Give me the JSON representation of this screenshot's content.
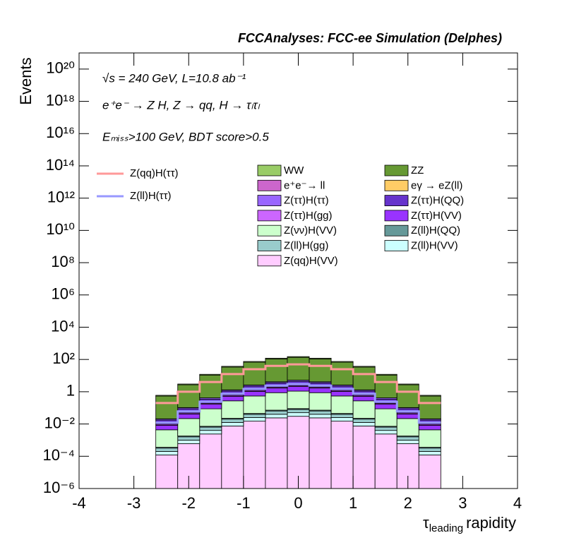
{
  "chart_data": {
    "type": "stacked_histogram",
    "title": "FCCAnalyses: FCC-ee Simulation (Delphes)",
    "annotations": [
      "√s = 240 GeV, L=10.8 ab⁻¹",
      "e⁺e⁻ → Z H, Z → qq, H → τₗτₗ",
      "Eₘᵢₛₛ>100 GeV, BDT score>0.5"
    ],
    "xlabel": {
      "symbol": "τ",
      "subscript": "leading",
      "text": "rapidity"
    },
    "ylabel": "Events",
    "log_y": true,
    "xlim": [
      -4,
      4
    ],
    "ylim": [
      1e-06,
      1e+21
    ],
    "xticks": [
      -4,
      -3,
      -2,
      -1,
      0,
      1,
      2,
      3,
      4
    ],
    "yticks": [
      {
        "value": 1e-06,
        "label": "10⁻⁶"
      },
      {
        "value": 0.0001,
        "label": "10⁻⁴"
      },
      {
        "value": 0.01,
        "label": "10⁻²"
      },
      1,
      {
        "value": 100,
        "label": "10²"
      },
      {
        "value": 10000.0,
        "label": "10⁴"
      },
      {
        "value": 1000000.0,
        "label": "10⁶"
      },
      {
        "value": 100000000.0,
        "label": "10⁸"
      },
      {
        "value": 10000000000.0,
        "label": "10¹⁰"
      },
      {
        "value": 1000000000000.0,
        "label": "10¹²"
      },
      {
        "value": 100000000000000.0,
        "label": "10¹⁴"
      },
      {
        "value": 1e+16,
        "label": "10¹⁶"
      },
      {
        "value": 1e+18,
        "label": "10¹⁸"
      },
      {
        "value": 1e+20,
        "label": "10²⁰"
      }
    ],
    "bins": [
      -2.6,
      -2.2,
      -1.8,
      -1.4,
      -1.0,
      -0.6,
      -0.2,
      0.2,
      0.6,
      1.0,
      1.4,
      1.8,
      2.2,
      2.6
    ],
    "series": [
      {
        "name": "WW",
        "color": "#99cc66",
        "values": [
          0.06,
          0.3,
          1.2,
          3.75,
          7.5,
          12,
          15,
          12,
          7.5,
          3.75,
          1.2,
          0.3,
          0.06
        ]
      },
      {
        "name": "ZZ",
        "color": "#669933",
        "values": [
          0.52,
          2.6,
          10.4,
          32.5,
          65,
          104,
          130,
          104,
          65,
          32.5,
          10.4,
          2.6,
          0.52
        ]
      },
      {
        "name": "e⁺e⁻→ ll",
        "color": "#cc66cc",
        "values": [
          8e-05,
          0.0004,
          0.0016,
          0.005,
          0.01,
          0.016,
          0.02,
          0.016,
          0.01,
          0.005,
          0.0016,
          0.0004,
          8e-05
        ]
      },
      {
        "name": "eγ → eZ(ll)",
        "color": "#ffcc66",
        "values": [
          4e-05,
          0.0002,
          0.0008,
          0.0025,
          0.005,
          0.008,
          0.01,
          0.008,
          0.005,
          0.0025,
          0.0008,
          0.0002,
          4e-05
        ]
      },
      {
        "name": "Z(ττ)H(ττ)",
        "color": "#9966ff",
        "values": [
          0.0032,
          0.016,
          0.064,
          0.2,
          0.4,
          0.64,
          0.8,
          0.64,
          0.4,
          0.2,
          0.064,
          0.016,
          0.0032
        ]
      },
      {
        "name": "Z(ττ)H(QQ)",
        "color": "#6633cc",
        "values": [
          0.008,
          0.04,
          0.16,
          0.5,
          1,
          1.6,
          2,
          1.6,
          1,
          0.5,
          0.16,
          0.04,
          0.008
        ]
      },
      {
        "name": "Z(ττ)H(gg)",
        "color": "#cc66ff",
        "values": [
          0.0012,
          0.006,
          0.024,
          0.075,
          0.15,
          0.24,
          0.3,
          0.24,
          0.15,
          0.075,
          0.024,
          0.006,
          0.0012
        ]
      },
      {
        "name": "Z(ττ)H(VV)",
        "color": "#9933ff",
        "values": [
          0.004,
          0.02,
          0.08,
          0.25,
          0.5,
          0.8,
          1,
          0.8,
          0.5,
          0.25,
          0.08,
          0.02,
          0.004
        ]
      },
      {
        "name": "Z(νν)H(VV)",
        "color": "#ccffcc",
        "values": [
          0.004,
          0.02,
          0.08,
          0.25,
          0.5,
          0.8,
          1,
          0.8,
          0.5,
          0.25,
          0.08,
          0.02,
          0.004
        ]
      },
      {
        "name": "Z(ll)H(QQ)",
        "color": "#669999",
        "values": [
          4e-05,
          0.0002,
          0.0008,
          0.0025,
          0.005,
          0.008,
          0.01,
          0.008,
          0.005,
          0.0025,
          0.0008,
          0.0002,
          4e-05
        ]
      },
      {
        "name": "Z(ll)H(gg)",
        "color": "#99cccc",
        "values": [
          0.00012,
          0.0006,
          0.0024,
          0.0075,
          0.015,
          0.024,
          0.03,
          0.024,
          0.015,
          0.0075,
          0.0024,
          0.0006,
          0.00012
        ]
      },
      {
        "name": "Z(ll)H(VV)",
        "color": "#ccffff",
        "values": [
          8e-05,
          0.0004,
          0.0016,
          0.005,
          0.01,
          0.016,
          0.02,
          0.016,
          0.01,
          0.005,
          0.0016,
          0.0004,
          8e-05
        ]
      },
      {
        "name": "Z(qq)H(VV)",
        "color": "#ffccff",
        "values": [
          0.00012,
          0.0006,
          0.0024,
          0.0075,
          0.015,
          0.024,
          0.03,
          0.024,
          0.015,
          0.0075,
          0.0024,
          0.0006,
          0.00012
        ]
      }
    ],
    "lines": [
      {
        "name": "Z(qq)H(ττ)",
        "color": "#ff9999",
        "values": [
          0.2,
          1,
          4,
          12.5,
          25,
          40,
          50,
          40,
          25,
          12.5,
          4,
          1,
          0.2
        ]
      },
      {
        "name": "Z(ll)H(ττ)",
        "color": "#9999ff",
        "values": [
          0.012,
          0.06,
          0.24,
          0.75,
          1.5,
          2.4,
          3,
          2.4,
          1.5,
          0.75,
          0.24,
          0.06,
          0.012
        ]
      }
    ]
  }
}
